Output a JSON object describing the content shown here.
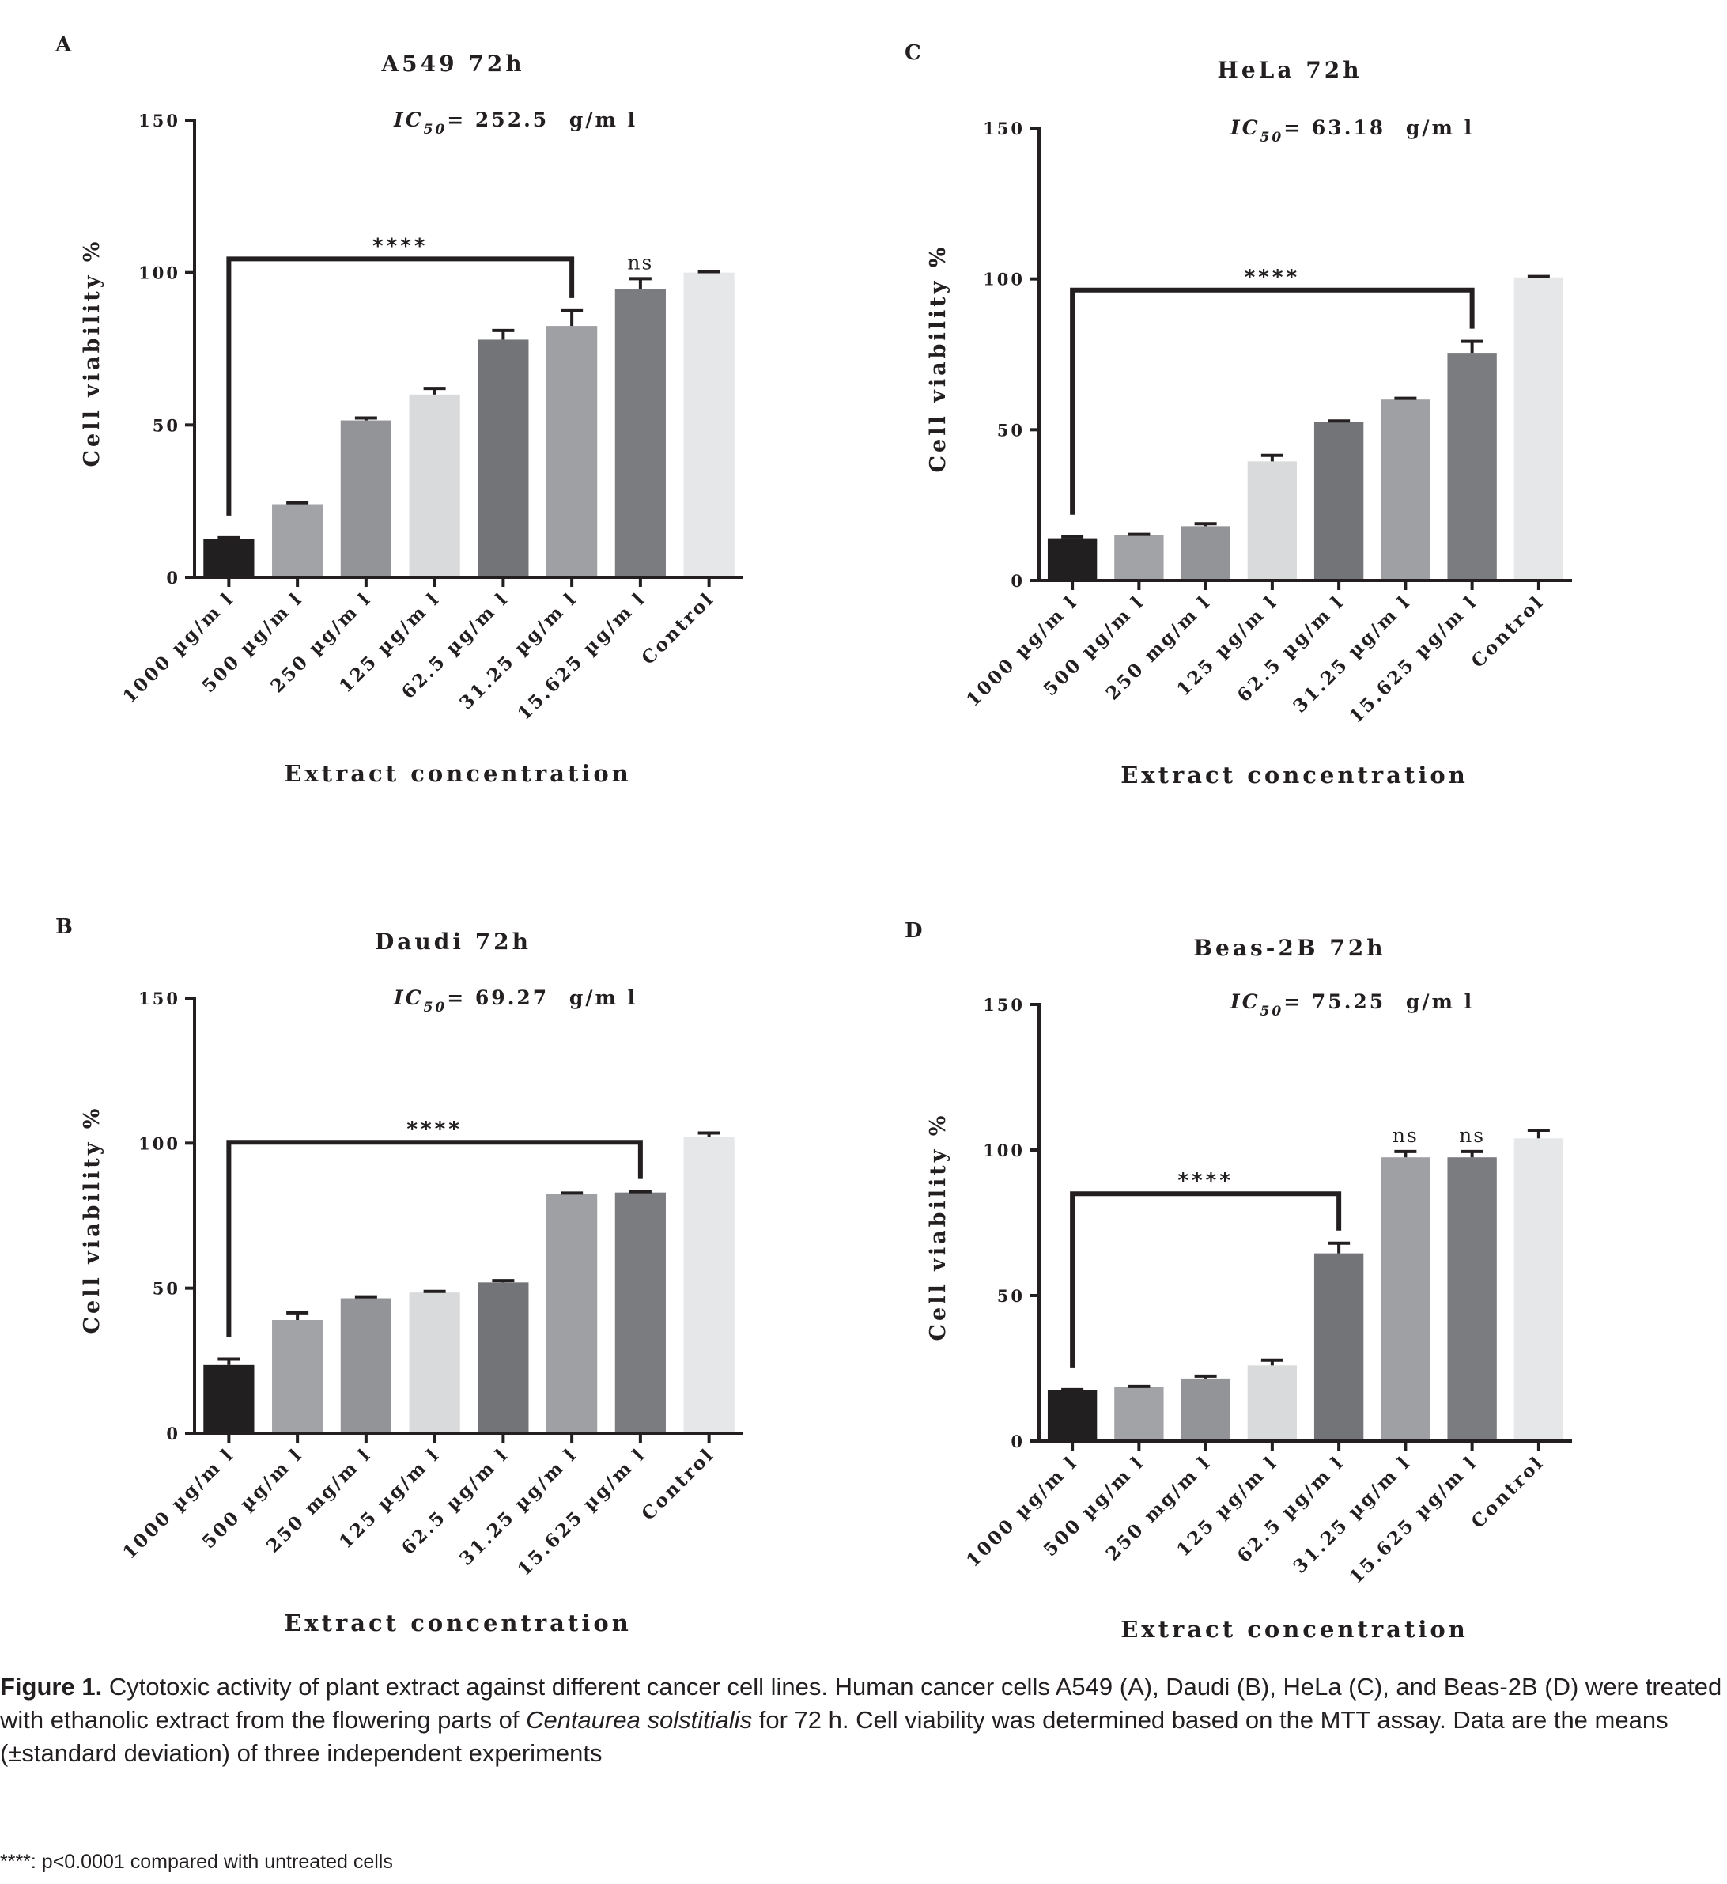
{
  "chart_data": [
    {
      "type": "bar",
      "panel": "A",
      "title": "A549 72h",
      "ic50_label": "IC",
      "ic50_sub": "50",
      "ic50_value": "= 252.5 ",
      "ic50_unit": "g/m l",
      "xlabel": "Extract concentration",
      "ylabel": "Cell viability %",
      "ylim": [
        0,
        150
      ],
      "yticks": [
        "0",
        "50",
        "100",
        "150"
      ],
      "categories": [
        "1000 µg/m l",
        "500 µg/m l",
        "250 µg/m l",
        "125 µg/m l",
        "62.5 µg/m l",
        "31.25 µg/m l",
        "15.625 µg/m l",
        "Control"
      ],
      "values": [
        12.5,
        24,
        51.5,
        60,
        78,
        82.5,
        94.5,
        100
      ],
      "errors": [
        0.5,
        0.5,
        0.8,
        2.0,
        3.0,
        5.0,
        3.5,
        0.3
      ],
      "colors": [
        "#221f20",
        "#a2a3a6",
        "#939497",
        "#d9dadb",
        "#737477",
        "#9fa0a3",
        "#7b7c7f",
        "#e6e7e8"
      ],
      "significance": {
        "label": "****",
        "from": 0,
        "to": 5
      },
      "ns_labels": [
        {
          "index": 6,
          "label": "ns"
        }
      ]
    },
    {
      "type": "bar",
      "panel": "C",
      "title": "HeLa 72h",
      "ic50_label": "IC",
      "ic50_sub": "50",
      "ic50_value": "= 63.18 ",
      "ic50_unit": "g/m l",
      "xlabel": "Extract concentration",
      "ylabel": "Cell viability %",
      "ylim": [
        0,
        150
      ],
      "yticks": [
        "0",
        "50",
        "100",
        "150"
      ],
      "categories": [
        "1000 µg/m l",
        "500 µg/m l",
        "250 mg/m l",
        "125 µg/m l",
        "62.5 µg/m l",
        "31.25 µg/m l",
        "15.625 µg/m l",
        "Control"
      ],
      "values": [
        14,
        15,
        18,
        39.5,
        52.5,
        60,
        75.5,
        100.5
      ],
      "errors": [
        0.5,
        0.3,
        0.8,
        2.0,
        0.4,
        0.4,
        3.8,
        0.3
      ],
      "colors": [
        "#221f20",
        "#a2a3a6",
        "#939497",
        "#d9dadb",
        "#737477",
        "#9fa0a3",
        "#7b7c7f",
        "#e6e7e8"
      ],
      "significance": {
        "label": "****",
        "from": 0,
        "to": 6
      },
      "ns_labels": []
    },
    {
      "type": "bar",
      "panel": "B",
      "title": "Daudi 72h",
      "ic50_label": "IC",
      "ic50_sub": "50",
      "ic50_value": "=  69.27 ",
      "ic50_unit": "g/m l",
      "xlabel": "Extract concentration",
      "ylabel": "Cell viability %",
      "ylim": [
        0,
        150
      ],
      "yticks": [
        "0",
        "50",
        "100",
        "150"
      ],
      "categories": [
        "1000 µg/m l",
        "500 µg/m l",
        "250 mg/m l",
        "125 µg/m l",
        "62.5 µg/m l",
        "31.25 µg/m l",
        "15.625 µg/m l",
        "Control"
      ],
      "values": [
        23.5,
        39,
        46.5,
        48.5,
        52,
        82.5,
        83,
        102
      ],
      "errors": [
        2.0,
        2.5,
        0.5,
        0.4,
        0.6,
        0.3,
        0.3,
        1.5
      ],
      "colors": [
        "#221f20",
        "#a2a3a6",
        "#939497",
        "#d9dadb",
        "#737477",
        "#9fa0a3",
        "#7b7c7f",
        "#e6e7e8"
      ],
      "significance": {
        "label": "****",
        "from": 0,
        "to": 6
      },
      "ns_labels": []
    },
    {
      "type": "bar",
      "panel": "D",
      "title": "Beas-2B 72h",
      "ic50_label": "IC",
      "ic50_sub": "50",
      "ic50_value": "= 75.25 ",
      "ic50_unit": "g/m l",
      "xlabel": "Extract concentration",
      "ylabel": "Cell viability %",
      "ylim": [
        0,
        150
      ],
      "yticks": [
        "0",
        "50",
        "100",
        "150"
      ],
      "categories": [
        "1000 µg/m l",
        "500 µg/m l",
        "250 mg/m l",
        "125 µg/m l",
        "62.5 µg/m l",
        "31.25 µg/m l",
        "15.625 µg/m l",
        "Control"
      ],
      "values": [
        17.5,
        18.5,
        21.5,
        26,
        64.5,
        97.5,
        97.5,
        104
      ],
      "errors": [
        0.2,
        0.3,
        0.8,
        1.8,
        3.5,
        2.0,
        2.0,
        2.8
      ],
      "colors": [
        "#221f20",
        "#a2a3a6",
        "#939497",
        "#d9dadb",
        "#737477",
        "#9fa0a3",
        "#7b7c7f",
        "#e6e7e8"
      ],
      "significance": {
        "label": "****",
        "from": 0,
        "to": 4
      },
      "ns_labels": [
        {
          "index": 5,
          "label": "ns"
        },
        {
          "index": 6,
          "label": "ns"
        }
      ]
    }
  ],
  "caption": {
    "figure_label": "Figure 1.",
    "text_before_italic": " Cytotoxic activity of plant extract against different cancer cell lines. Human cancer cells A549 (A), Daudi (B), HeLa (C), and Beas-2B (D) were treated with ethanolic extract from the flowering parts of ",
    "italic": "Centaurea solstitialis",
    "text_after_italic": " for 72 h. Cell viability was determined based on the MTT assay. Data are the means (±standard deviation) of three independent experiments"
  },
  "footnote": "****: p<0.0001 compared with untreated cells"
}
